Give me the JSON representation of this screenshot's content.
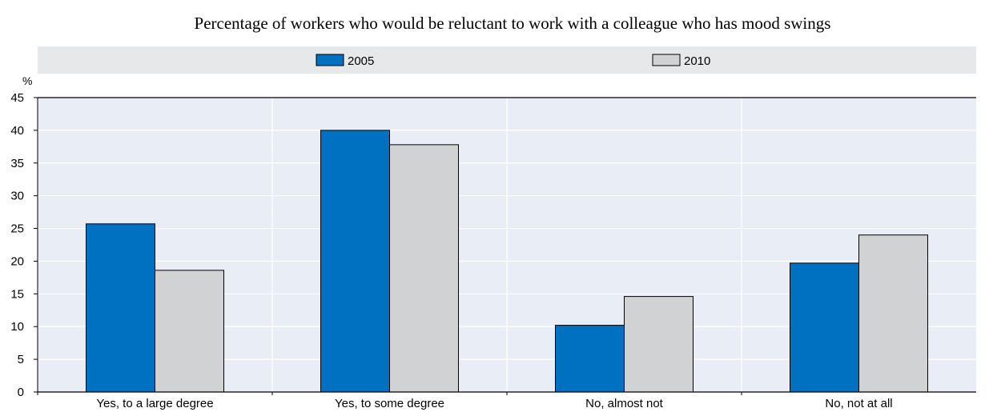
{
  "chart_data": {
    "type": "bar",
    "title": "Percentage of workers who would be reluctant to work with a colleague who has mood swings",
    "ylabel": "%",
    "xlabel": "",
    "categories": [
      "Yes, to a large degree",
      "Yes, to some degree",
      "No, almost not",
      "No, not at all"
    ],
    "series": [
      {
        "name": "2005",
        "values": [
          25.7,
          40.0,
          10.2,
          19.7
        ],
        "color": "#0070C0"
      },
      {
        "name": "2010",
        "values": [
          18.6,
          37.8,
          14.6,
          24.0
        ],
        "color": "#D0D2D3"
      }
    ],
    "ylim": [
      0,
      45
    ],
    "yticks": [
      "0",
      "5",
      "10",
      "15",
      "20",
      "25",
      "30",
      "35",
      "40",
      "45"
    ],
    "grid": true,
    "legend_position": "top",
    "plot_background": "#E9EDF6",
    "legend_background": "#E7E8E9"
  }
}
